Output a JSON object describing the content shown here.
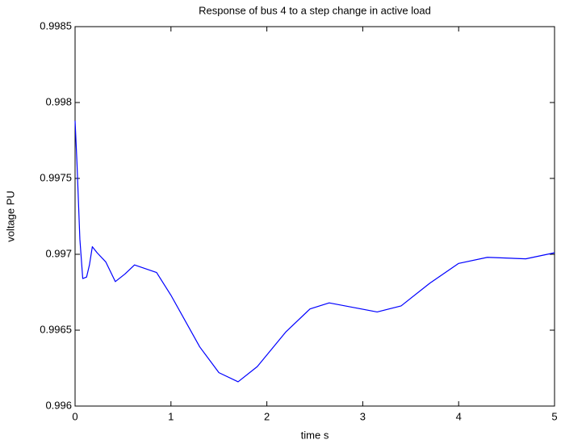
{
  "chart_data": {
    "type": "line",
    "title": "Response of bus 4 to a step change in active load",
    "xlabel": "time s",
    "ylabel": "voltage PU",
    "x": [
      0,
      0.02,
      0.05,
      0.08,
      0.12,
      0.15,
      0.18,
      0.23,
      0.32,
      0.42,
      0.52,
      0.62,
      0.85,
      1.0,
      1.3,
      1.5,
      1.7,
      1.9,
      2.2,
      2.45,
      2.65,
      2.9,
      3.15,
      3.4,
      3.7,
      4.0,
      4.3,
      4.7,
      5.0
    ],
    "series": [
      {
        "color": "#0000ff",
        "values": [
          0.99788,
          0.9976,
          0.9971,
          0.99684,
          0.99685,
          0.99693,
          0.99705,
          0.99701,
          0.99695,
          0.99682,
          0.99687,
          0.99693,
          0.99688,
          0.99673,
          0.99639,
          0.99622,
          0.99616,
          0.99626,
          0.99649,
          0.99664,
          0.99668,
          0.99665,
          0.99662,
          0.99666,
          0.99681,
          0.99694,
          0.99698,
          0.99697,
          0.99701
        ]
      }
    ],
    "xlim": [
      0,
      5
    ],
    "xticks": [
      0,
      1,
      2,
      3,
      4,
      5
    ],
    "ylim": [
      0.996,
      0.9985
    ],
    "yticks": [
      0.996,
      0.9965,
      0.997,
      0.9975,
      0.998,
      0.9985
    ],
    "grid": false
  }
}
